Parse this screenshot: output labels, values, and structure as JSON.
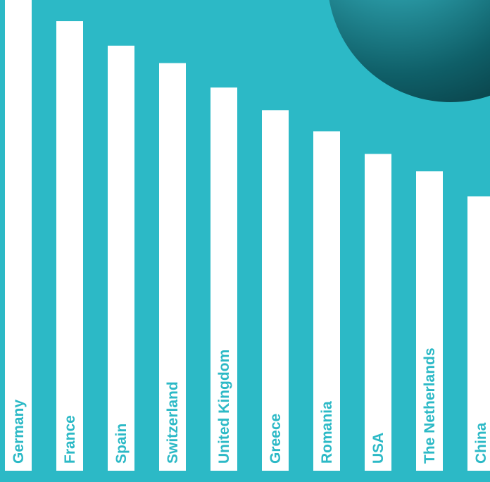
{
  "colors": {
    "background": "#2cb9c6",
    "bar": "#ffffff",
    "label": "#2cb9c6",
    "sphere_light": "#8fdde5",
    "sphere_dark": "#0f5f68"
  },
  "chart_data": {
    "type": "bar",
    "orientation": "vertical",
    "categories": [
      "Germany",
      "France",
      "Spain",
      "Switzerland",
      "United Kingdom",
      "Greece",
      "Romania",
      "USA",
      "The Netherlands",
      "China"
    ],
    "values": [
      100,
      95.5,
      90.3,
      86.6,
      81.4,
      76.6,
      72.1,
      67.3,
      63.6,
      58.3
    ],
    "ylim": [
      0,
      100
    ],
    "grid": false,
    "legend": "none",
    "label_placement": "inside-bar-bottom-rotated",
    "title": "",
    "xlabel": "",
    "ylabel": ""
  }
}
